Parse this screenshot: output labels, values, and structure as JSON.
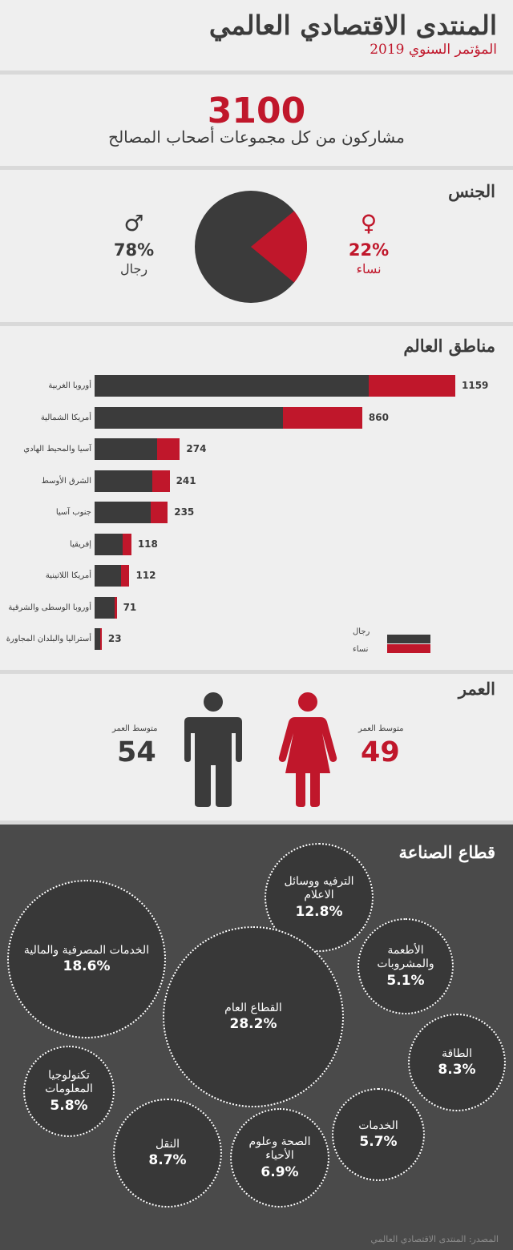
{
  "header": {
    "title": "المنتدى الاقتصادي العالمي",
    "subtitle": "المؤتمر السنوي 2019"
  },
  "total": {
    "number": "3100",
    "caption": "مشاركون من كل مجموعات أصحاب المصالح"
  },
  "gender": {
    "section_title": "الجنس",
    "men": {
      "symbol": "♂",
      "percent": "78%",
      "label": "رجال",
      "value": 78,
      "color": "#3b3b3b"
    },
    "women": {
      "symbol": "♀",
      "percent": "22%",
      "label": "نساء",
      "value": 22,
      "color": "#c0172b"
    }
  },
  "regions": {
    "section_title": "مناطق العالم",
    "legend": {
      "men": "رجال",
      "women": "نساء"
    }
  },
  "age": {
    "section_title": "العمر",
    "men": {
      "caption": "متوسط العمر",
      "value": "54"
    },
    "women": {
      "caption": "متوسط العمر",
      "value": "49"
    }
  },
  "industry": {
    "section_title": "قطاع الصناعة",
    "bubbles": [
      {
        "label": "الترفيه ووسائل الاعلام",
        "value": "12.8%"
      },
      {
        "label": "الخدمات المصرفية والمالية",
        "value": "18.6%"
      },
      {
        "label": "الأطعمة والمشروبات",
        "value": "5.1%"
      },
      {
        "label": "القطاع العام",
        "value": "28.2%"
      },
      {
        "label": "الطاقة",
        "value": "8.3%"
      },
      {
        "label": "تكنولوجيا المعلومات",
        "value": "5.8%"
      },
      {
        "label": "الخدمات",
        "value": "5.7%"
      },
      {
        "label": "النقل",
        "value": "8.7%"
      },
      {
        "label": "الصحة وعلوم الأحياء",
        "value": "6.9%"
      }
    ]
  },
  "source": "المصدر: المنتدى الاقتصادي العالمي",
  "colors": {
    "men": "#3b3b3b",
    "women": "#c0172b",
    "panel": "#efefef",
    "dark": "#4a4a4a"
  },
  "chart_data": [
    {
      "type": "pie",
      "title": "الجنس",
      "labels": [
        "رجال",
        "نساء"
      ],
      "values": [
        78,
        22
      ]
    },
    {
      "type": "bar",
      "orientation": "horizontal",
      "stacked": true,
      "title": "مناطق العالم",
      "categories": [
        "أوروبا الغربية",
        "أمريكا الشمالية",
        "آسيا والمحيط الهادي",
        "الشرق الأوسط",
        "جنوب آسيا",
        "إفريقيا",
        "أمريكا اللاتينية",
        "أوروبا الوسطى والشرقية",
        "أستراليا والبلدان المجاورة"
      ],
      "totals": [
        1159,
        860,
        274,
        241,
        235,
        118,
        112,
        71,
        23
      ],
      "series": [
        {
          "name": "رجال",
          "values": [
            880,
            606,
            200,
            186,
            180,
            91,
            84,
            65,
            17
          ]
        },
        {
          "name": "نساء",
          "values": [
            279,
            254,
            74,
            55,
            55,
            27,
            28,
            6,
            6
          ]
        }
      ],
      "legend": "bottom-right"
    },
    {
      "type": "table",
      "title": "العمر",
      "rows": [
        {
          "label": "رجال",
          "average_age": 54
        },
        {
          "label": "نساء",
          "average_age": 49
        }
      ]
    },
    {
      "type": "bubble",
      "title": "قطاع الصناعة",
      "categories": [
        "الترفيه ووسائل الاعلام",
        "الخدمات المصرفية والمالية",
        "الأطعمة والمشروبات",
        "القطاع العام",
        "الطاقة",
        "تكنولوجيا المعلومات",
        "الخدمات",
        "النقل",
        "الصحة وعلوم الأحياء"
      ],
      "values": [
        12.8,
        18.6,
        5.1,
        28.2,
        8.3,
        5.8,
        5.7,
        8.7,
        6.9
      ]
    }
  ]
}
